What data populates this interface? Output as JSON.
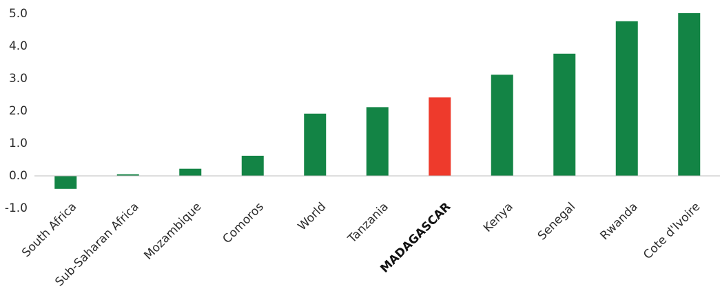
{
  "chart_data": {
    "type": "bar",
    "title": "",
    "xlabel": "",
    "ylabel": "",
    "ylim": [
      -1.0,
      5.0
    ],
    "ytick_values": [
      -1.0,
      0.0,
      1.0,
      2.0,
      3.0,
      4.0,
      5.0
    ],
    "ytick_labels": [
      "-1.0",
      "0.0",
      "1.0",
      "2.0",
      "3.0",
      "4.0",
      "5.0"
    ],
    "grid": false,
    "categories": [
      "South Africa",
      "Sub-Saharan Africa",
      "Mozambique",
      "Comoros",
      "World",
      "Tanzania",
      "MADAGASCAR",
      "Kenya",
      "Senegal",
      "Rwanda",
      "Cote d'Ivoire"
    ],
    "values": [
      -0.4,
      0.05,
      0.22,
      0.62,
      1.92,
      2.12,
      2.42,
      3.12,
      3.77,
      4.77,
      5.02
    ],
    "highlight_category": "MADAGASCAR",
    "colors": {
      "bar": "#138445",
      "highlight": "#ee3a2c",
      "axis": "#bdbdbd"
    }
  }
}
